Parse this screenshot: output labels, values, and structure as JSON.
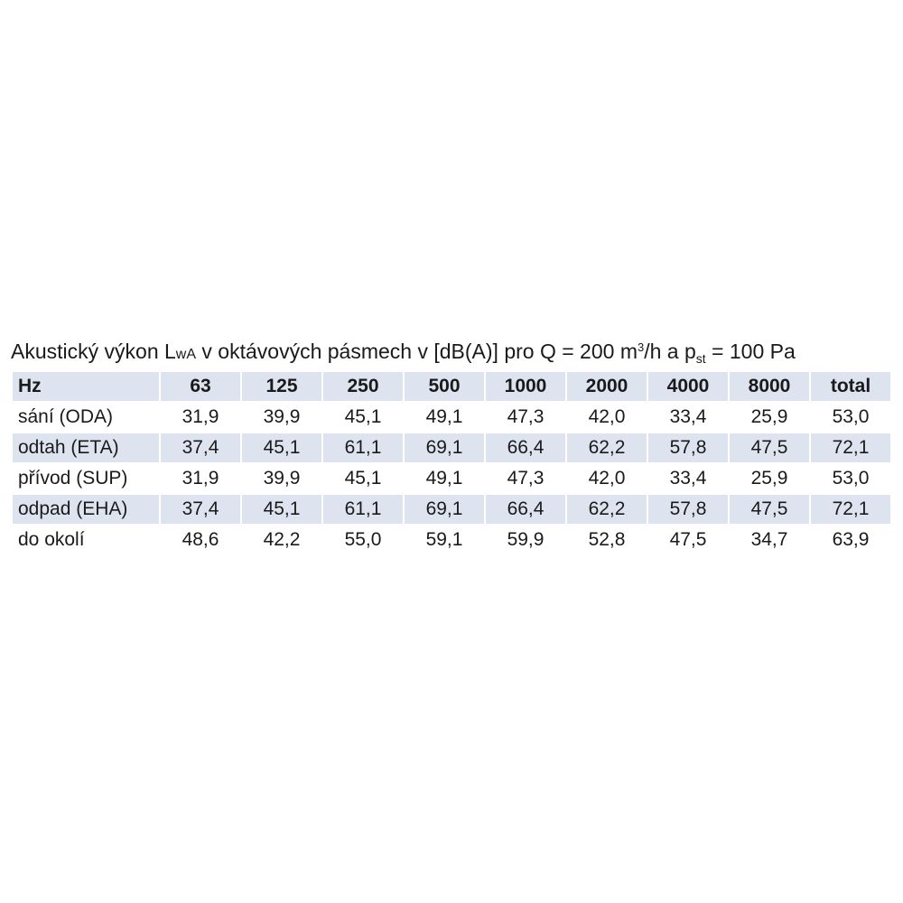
{
  "title": {
    "main": "Akustický výkon L",
    "sub_wa": "wA",
    "mid": " v oktávových pásmech v [dB(A)] pro Q = 200 m",
    "sup_3": "3",
    "mid2": "/h a p",
    "sub_st": "st",
    "end": " = 100 Pa"
  },
  "table": {
    "header": [
      "Hz",
      "63",
      "125",
      "250",
      "500",
      "1000",
      "2000",
      "4000",
      "8000",
      "total"
    ],
    "rows": [
      {
        "label": "sání (ODA)",
        "values": [
          "31,9",
          "39,9",
          "45,1",
          "49,1",
          "47,3",
          "42,0",
          "33,4",
          "25,9",
          "53,0"
        ]
      },
      {
        "label": "odtah (ETA)",
        "values": [
          "37,4",
          "45,1",
          "61,1",
          "69,1",
          "66,4",
          "62,2",
          "57,8",
          "47,5",
          "72,1"
        ]
      },
      {
        "label": "přívod (SUP)",
        "values": [
          "31,9",
          "39,9",
          "45,1",
          "49,1",
          "47,3",
          "42,0",
          "33,4",
          "25,9",
          "53,0"
        ]
      },
      {
        "label": "odpad (EHA)",
        "values": [
          "37,4",
          "45,1",
          "61,1",
          "69,1",
          "66,4",
          "62,2",
          "57,8",
          "47,5",
          "72,1"
        ]
      },
      {
        "label": "do okolí",
        "values": [
          "48,6",
          "42,2",
          "55,0",
          "59,1",
          "59,9",
          "52,8",
          "47,5",
          "34,7",
          "63,9"
        ]
      }
    ]
  },
  "colors": {
    "shade": "#dde4ef",
    "text": "#1a1a1a"
  }
}
